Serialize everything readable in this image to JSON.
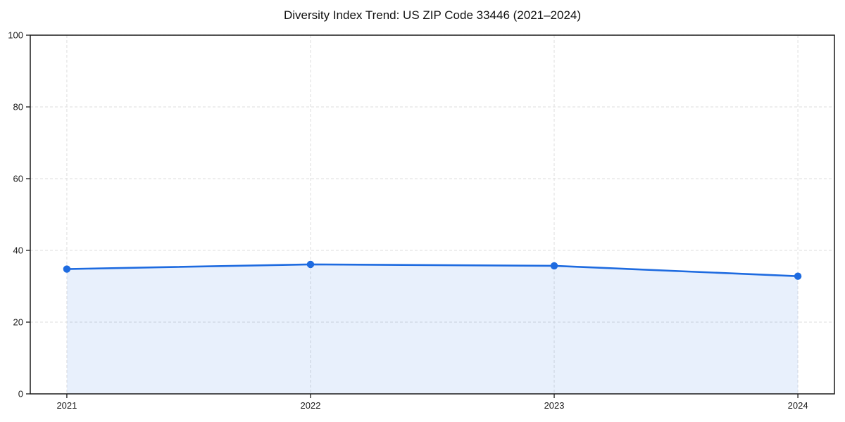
{
  "chart_data": {
    "type": "area",
    "title": "Diversity Index Trend: US ZIP Code 33446 (2021–2024)",
    "categories": [
      "2021",
      "2022",
      "2023",
      "2024"
    ],
    "x": [
      2021,
      2022,
      2023,
      2024
    ],
    "series": [
      {
        "name": "Diversity Index",
        "values": [
          34.8,
          36.1,
          35.7,
          32.8
        ]
      }
    ],
    "xlabel": "",
    "ylabel": "",
    "xlim": [
      2020.85,
      2024.15
    ],
    "ylim": [
      0,
      100
    ],
    "yticks": [
      0,
      20,
      40,
      60,
      80,
      100
    ],
    "grid": true,
    "grid_style": "dashed",
    "legend_position": "none",
    "colors": {
      "line": "#1e6be0",
      "marker": "#1e6be0",
      "fill": "#1e6be0",
      "fill_opacity": 0.1,
      "grid": "#e3e3e3",
      "spine": "#1a1a1a",
      "background": "#ffffff",
      "text": "#1a1a1a"
    }
  }
}
